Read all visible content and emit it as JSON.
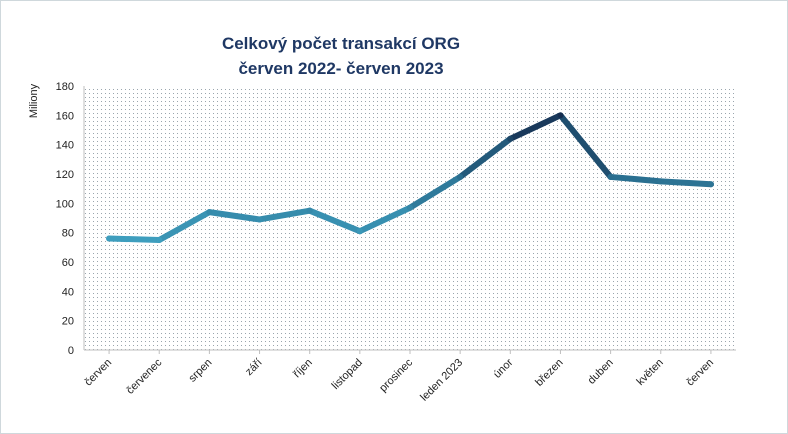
{
  "chart_data": {
    "type": "line",
    "title_line1": "Celkový počet transakcí ORG",
    "title_line2": "červen 2022- červen 2023",
    "ylabel": "Miliony",
    "xlabel": "",
    "categories": [
      "červen",
      "červenec",
      "srpen",
      "září",
      "říjen",
      "listopad",
      "prosinec",
      "leden 2023",
      "únor",
      "březen",
      "duben",
      "květen",
      "červen"
    ],
    "series": [
      {
        "values": [
          76,
          75,
          94,
          89,
          95,
          81,
          97,
          118,
          144,
          160,
          118,
          115,
          113
        ]
      }
    ],
    "ylim": [
      0,
      180
    ],
    "yticks": [
      0,
      20,
      40,
      60,
      80,
      100,
      120,
      140,
      160,
      180
    ],
    "grid": false,
    "legend": "none",
    "colors": {
      "title": "#1f3864",
      "line_low": "#3e9fbf",
      "line_mid": "#2a6f90",
      "line_high": "#152d4f",
      "plot_dots": "#9aa5ad"
    }
  }
}
